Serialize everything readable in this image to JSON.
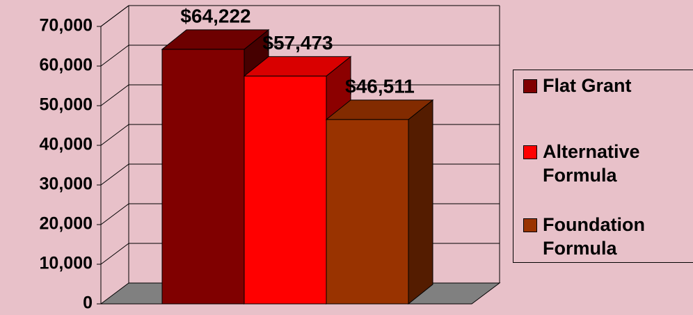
{
  "chart_data": {
    "type": "bar3d",
    "categories": [
      null
    ],
    "series": [
      {
        "name": "Flat Grant",
        "color": "#800000",
        "values": [
          64222
        ],
        "value_labels": [
          "$64,222"
        ]
      },
      {
        "name": "Alternative Formula",
        "color": "#ff0000",
        "values": [
          57473
        ],
        "value_labels": [
          "$57,473"
        ]
      },
      {
        "name": "Foundation Formula",
        "color": "#993300",
        "values": [
          46511
        ],
        "value_labels": [
          "$46,511"
        ]
      }
    ],
    "ylim": [
      0,
      70000
    ],
    "yticks": [
      0,
      {
        "value": 10000,
        "label": "10,000"
      },
      {
        "value": 20000,
        "label": "20,000"
      },
      {
        "value": 30000,
        "label": "30,000"
      },
      {
        "value": 40000,
        "label": "40,000"
      },
      {
        "value": 50000,
        "label": "50,000"
      },
      {
        "value": 60000,
        "label": "60,000"
      },
      {
        "value": 70000,
        "label": "70,000"
      }
    ],
    "grid": true,
    "legend": "right"
  }
}
